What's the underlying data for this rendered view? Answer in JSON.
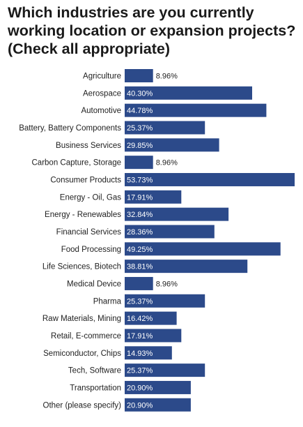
{
  "title": "Which industries are you currently working location or expansion projects? (Check all appropriate)",
  "colors": {
    "bar": "#2c4a8a",
    "text": "#222222"
  },
  "chart_data": {
    "type": "bar",
    "orientation": "horizontal",
    "title": "Which industries are you currently working location or expansion projects? (Check all appropriate)",
    "categories": [
      "Agriculture",
      "Aerospace",
      "Automotive",
      "Battery, Battery Components",
      "Business Services",
      "Carbon Capture, Storage",
      "Consumer Products",
      "Energy - Oil, Gas",
      "Energy - Renewables",
      "Financial Services",
      "Food Processing",
      "Life Sciences, Biotech",
      "Medical Device",
      "Pharma",
      "Raw Materials, Mining",
      "Retail, E-commerce",
      "Semiconductor, Chips",
      "Tech, Software",
      "Transportation",
      "Other (please specify)"
    ],
    "values": [
      8.96,
      40.3,
      44.78,
      25.37,
      29.85,
      8.96,
      53.73,
      17.91,
      32.84,
      28.36,
      49.25,
      38.81,
      8.96,
      25.37,
      16.42,
      17.91,
      14.93,
      25.37,
      20.9,
      20.9
    ],
    "value_labels": [
      "8.96%",
      "40.30%",
      "44.78%",
      "25.37%",
      "29.85%",
      "8.96%",
      "53.73%",
      "17.91%",
      "32.84%",
      "28.36%",
      "49.25%",
      "38.81%",
      "8.96%",
      "25.37%",
      "16.42%",
      "17.91%",
      "14.93%",
      "25.37%",
      "20.90%",
      "20.90%"
    ],
    "unit": "%",
    "xlim": [
      0,
      53.73
    ],
    "grid": false,
    "legend": "none"
  }
}
